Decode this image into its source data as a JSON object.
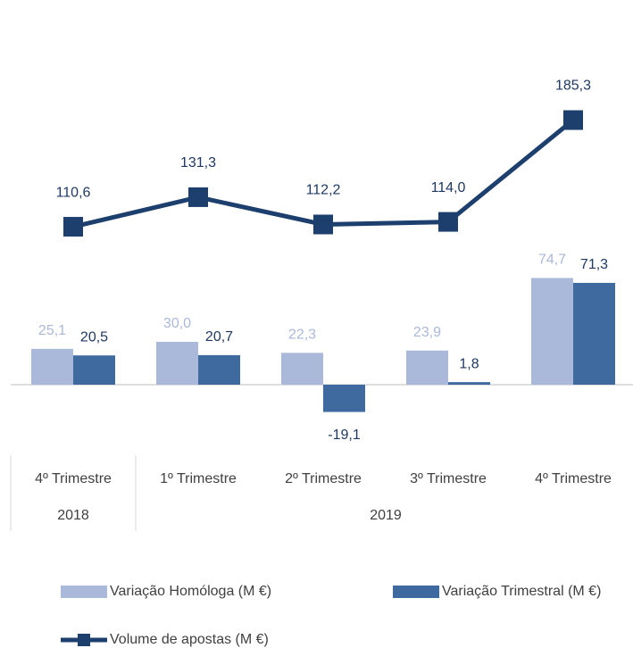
{
  "chart_data": {
    "type": "bar-line",
    "categories": [
      "4º Trimestre",
      "1º Trimestre",
      "2º Trimestre",
      "3º Trimestre",
      "4º Trimestre"
    ],
    "groups": [
      {
        "label": "2018",
        "count": 1
      },
      {
        "label": "2019",
        "count": 4
      }
    ],
    "series": [
      {
        "name": "Variação Homóloga (M €)",
        "type": "bar",
        "color": "#aab9da",
        "label_color": "#aab9da",
        "values": [
          25.1,
          30.0,
          22.3,
          23.9,
          74.7
        ],
        "value_labels": [
          "25,1",
          "30,0",
          "22,3",
          "23,9",
          "74,7"
        ]
      },
      {
        "name": "Variação Trimestral (M €)",
        "type": "bar",
        "color": "#3f6aa0",
        "label_color": "#1f3864",
        "values": [
          20.5,
          20.7,
          -19.1,
          1.8,
          71.3
        ],
        "value_labels": [
          "20,5",
          "20,7",
          "-19,1",
          "1,8",
          "71,3"
        ]
      },
      {
        "name": "Volume de apostas (M €)",
        "type": "line",
        "color": "#1c3f6e",
        "label_color": "#1f3864",
        "values": [
          110.6,
          131.3,
          112.2,
          114.0,
          185.3
        ],
        "value_labels": [
          "110,6",
          "131,3",
          "112,2",
          "114,0",
          "185,3"
        ]
      }
    ],
    "ylim": [
      -35,
      250
    ]
  }
}
